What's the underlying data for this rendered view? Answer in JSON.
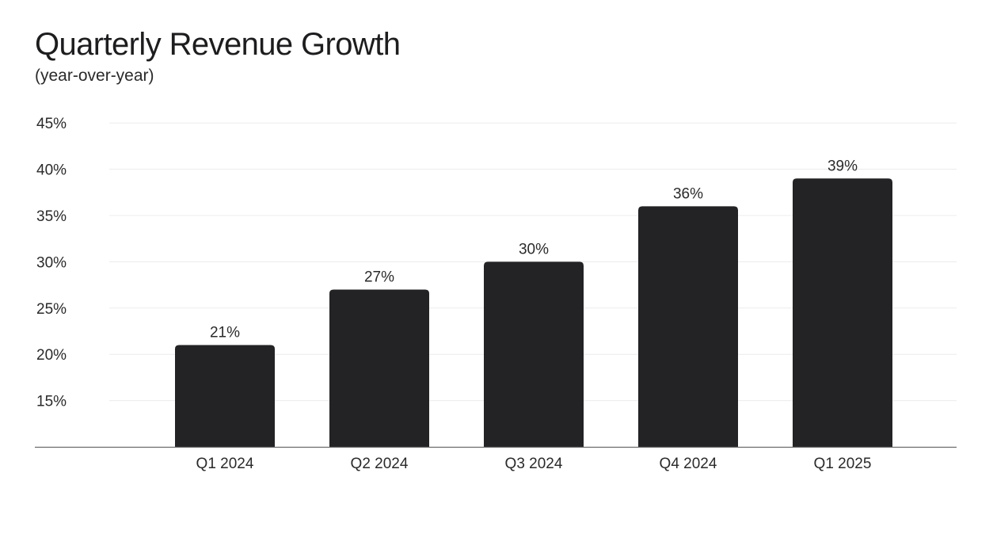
{
  "chart_data": {
    "type": "bar",
    "title": "Quarterly Revenue Growth",
    "subtitle": "(year-over-year)",
    "xlabel": "",
    "ylabel": "",
    "categories": [
      "Q1 2024",
      "Q2 2024",
      "Q3 2024",
      "Q4 2024",
      "Q1 2025"
    ],
    "values": [
      21,
      27,
      30,
      36,
      39
    ],
    "value_labels": [
      "21%",
      "27%",
      "30%",
      "36%",
      "39%"
    ],
    "yticks": [
      15,
      20,
      25,
      30,
      35,
      40,
      45
    ],
    "ytick_labels": [
      "15%",
      "20%",
      "25%",
      "30%",
      "35%",
      "40%",
      "45%"
    ],
    "ylim": [
      10,
      45
    ],
    "grid": true,
    "legend": "none",
    "colors": {
      "bar": "#232325",
      "grid": "#ececec",
      "axis": "#6b6b6b"
    }
  }
}
